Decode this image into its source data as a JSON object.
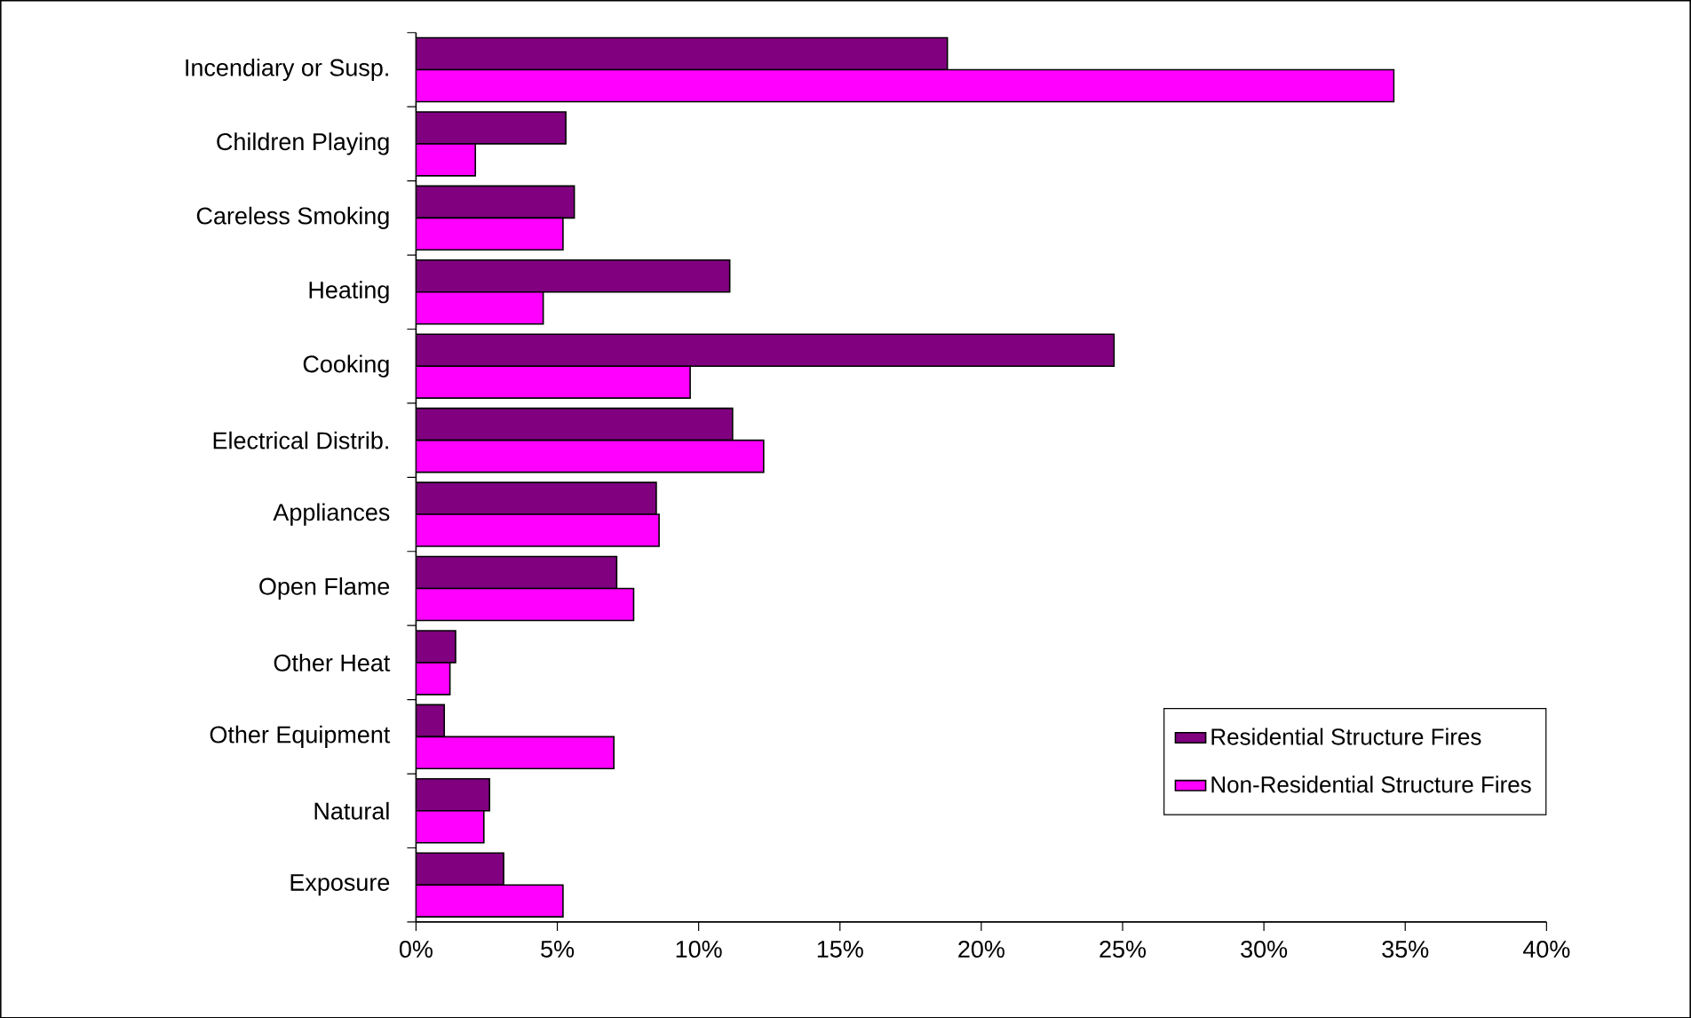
{
  "chart_data": {
    "type": "bar",
    "orientation": "horizontal",
    "categories": [
      "Incendiary or Susp.",
      "Children Playing",
      "Careless Smoking",
      "Heating",
      "Cooking",
      "Electrical Distrib.",
      "Appliances",
      "Open Flame",
      "Other Heat",
      "Other Equipment",
      "Natural",
      "Exposure"
    ],
    "series": [
      {
        "name": "Residential Structure Fires",
        "color": "#800080",
        "values": [
          18.8,
          5.3,
          5.6,
          11.1,
          24.7,
          11.2,
          8.5,
          7.1,
          1.4,
          1.0,
          2.6,
          3.1
        ]
      },
      {
        "name": "Non-Residential Structure Fires",
        "color": "#ff00ff",
        "values": [
          34.6,
          2.1,
          5.2,
          4.5,
          9.7,
          12.3,
          8.6,
          7.7,
          1.2,
          7.0,
          2.4,
          5.2
        ]
      }
    ],
    "xlim": [
      0,
      40
    ],
    "xticks": [
      {
        "value": 0,
        "label": "0%"
      },
      {
        "value": 5,
        "label": "5%"
      },
      {
        "value": 10,
        "label": "10%"
      },
      {
        "value": 15,
        "label": "15%"
      },
      {
        "value": 20,
        "label": "20%"
      },
      {
        "value": 25,
        "label": "25%"
      },
      {
        "value": 30,
        "label": "30%"
      },
      {
        "value": 35,
        "label": "35%"
      },
      {
        "value": 40,
        "label": "40%"
      }
    ],
    "grid": false,
    "legend": "bottom right"
  }
}
